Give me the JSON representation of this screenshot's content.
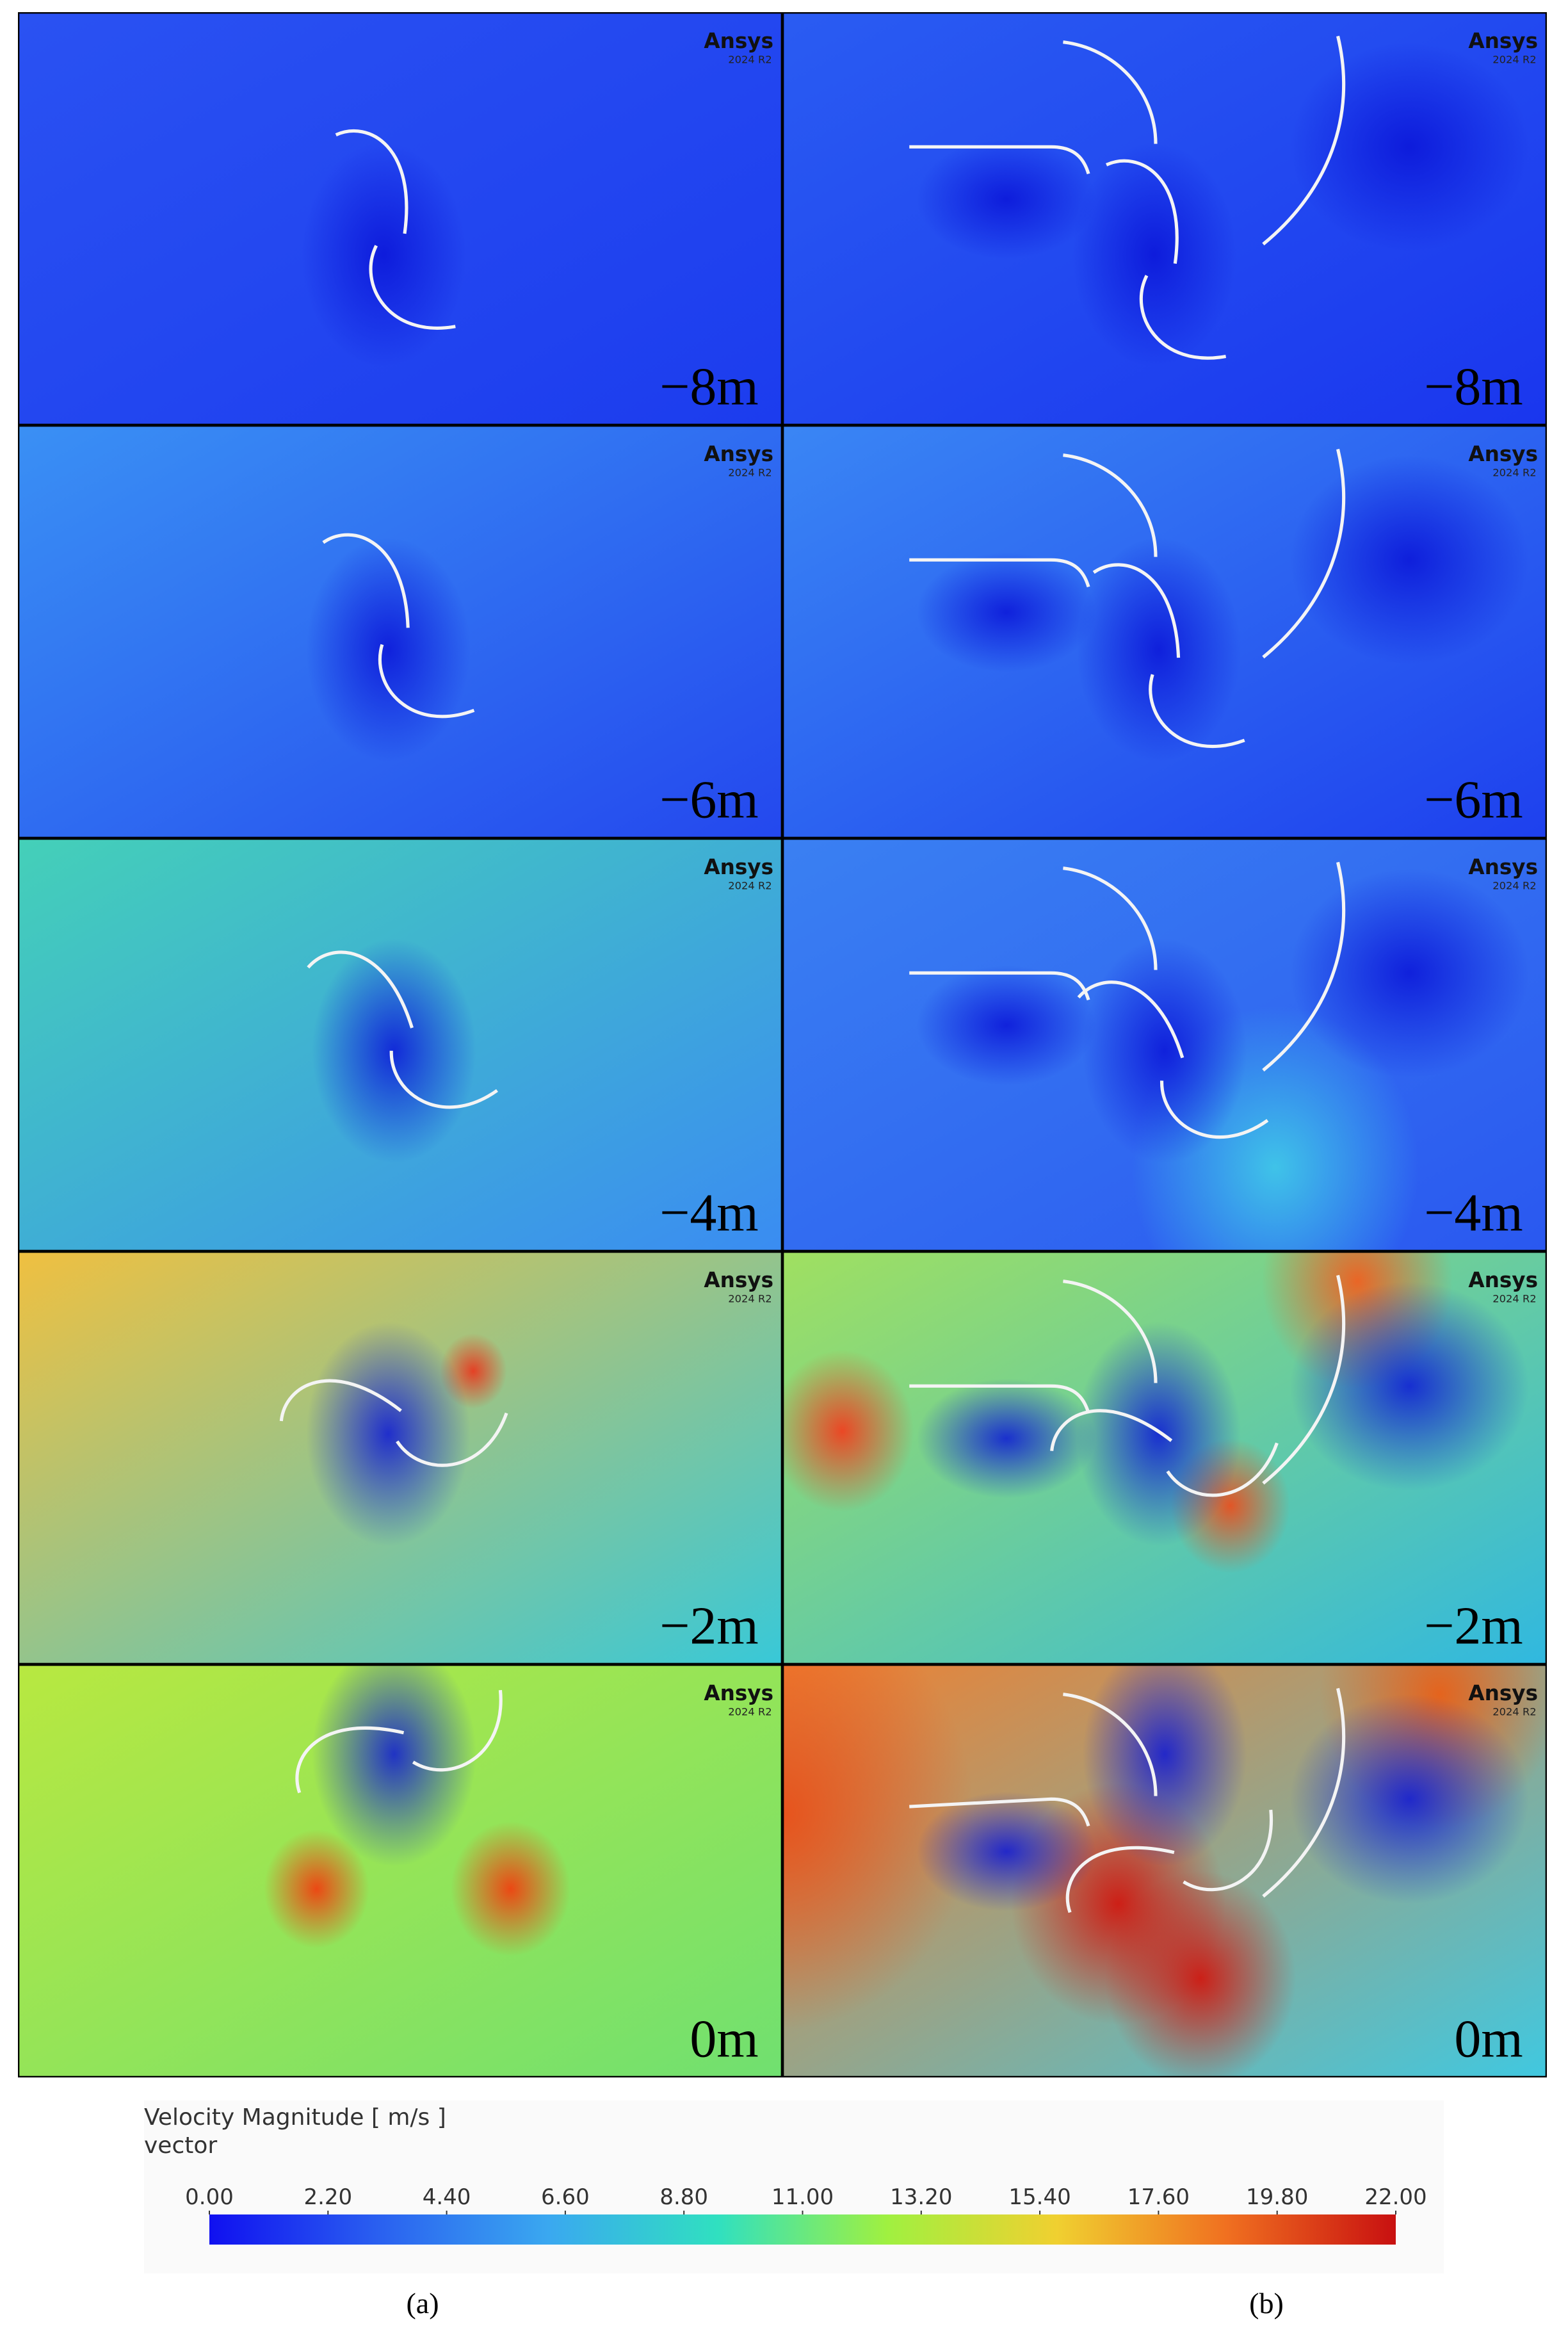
{
  "watermark": {
    "brand": "Ansys",
    "version": "2024 R2"
  },
  "columns": [
    {
      "caption": "(a)",
      "depths": [
        "−8m",
        "−6m",
        "−4m",
        "−2m",
        "0m"
      ]
    },
    {
      "caption": "(b)",
      "depths": [
        "−8m",
        "−6m",
        "−4m",
        "−2m",
        "0m"
      ]
    }
  ],
  "colorbar": {
    "title": "Velocity Magnitude [ m/s ]",
    "subtitle": "vector",
    "range": [
      0,
      22
    ],
    "ticks": [
      {
        "value": 0,
        "label": "0.00"
      },
      {
        "value": 2.2,
        "label": "2.20"
      },
      {
        "value": 4.4,
        "label": "4.40"
      },
      {
        "value": 6.6,
        "label": "6.60"
      },
      {
        "value": 8.8,
        "label": "8.80"
      },
      {
        "value": 11,
        "label": "11.00"
      },
      {
        "value": 13.2,
        "label": "13.20"
      },
      {
        "value": 15.4,
        "label": "15.40"
      },
      {
        "value": 17.6,
        "label": "17.60"
      },
      {
        "value": 19.8,
        "label": "19.80"
      },
      {
        "value": 22,
        "label": "22.00"
      }
    ],
    "colors": [
      "#1010f0",
      "#2a60f0",
      "#3aa8f0",
      "#30e0c0",
      "#a0f040",
      "#f0d030",
      "#f07020",
      "#c81010"
    ]
  }
}
